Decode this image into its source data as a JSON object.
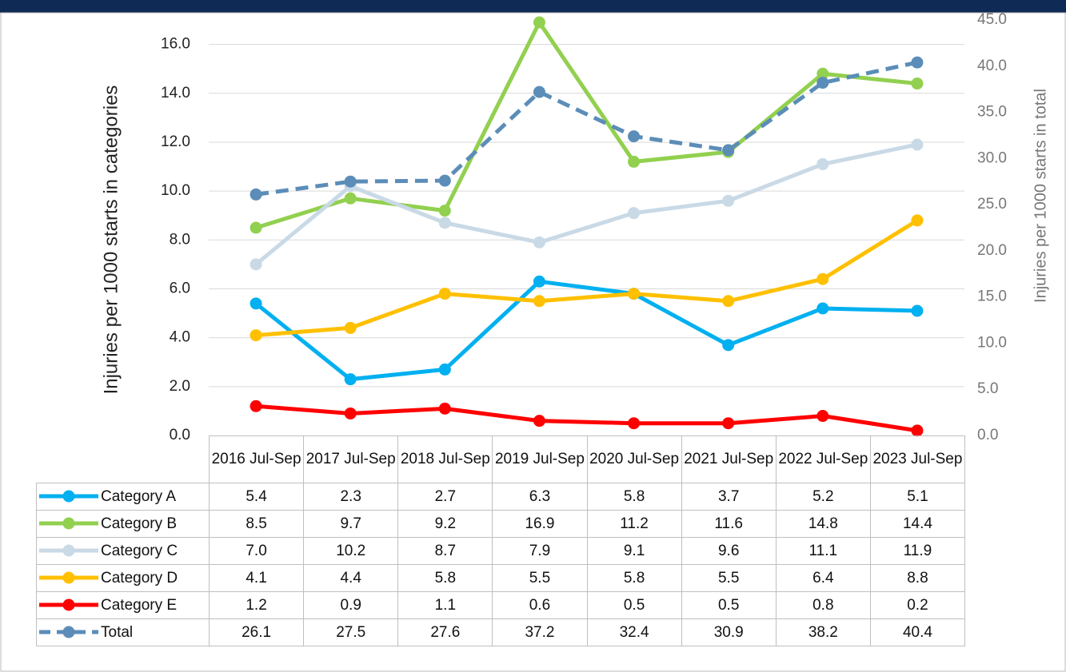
{
  "chart_data": {
    "type": "line",
    "y_label": "Injuries per 1000 starts in categories",
    "y2_label": "Injuries per 1000 starts in total",
    "categories": [
      "2016 Jul-Sep",
      "2017 Jul-Sep",
      "2018 Jul-Sep",
      "2019 Jul-Sep",
      "2020 Jul-Sep",
      "2021 Jul-Sep",
      "2022 Jul-Sep",
      "2023 Jul-Sep"
    ],
    "ylim": [
      0,
      17
    ],
    "yticks": [
      {
        "value": 0,
        "label": "0.0"
      },
      {
        "value": 2,
        "label": "2.0"
      },
      {
        "value": 4,
        "label": "4.0"
      },
      {
        "value": 6,
        "label": "6.0"
      },
      {
        "value": 8,
        "label": "8.0"
      },
      {
        "value": 10,
        "label": "10.0"
      },
      {
        "value": 12,
        "label": "12.0"
      },
      {
        "value": 14,
        "label": "14.0"
      },
      {
        "value": 16,
        "label": "16.0"
      }
    ],
    "y2lim": [
      0,
      45
    ],
    "y2ticks": [
      {
        "value": 0,
        "label": "0.0"
      },
      {
        "value": 5,
        "label": "5.0"
      },
      {
        "value": 10,
        "label": "10.0"
      },
      {
        "value": 15,
        "label": "15.0"
      },
      {
        "value": 20,
        "label": "20.0"
      },
      {
        "value": 25,
        "label": "25.0"
      },
      {
        "value": 30,
        "label": "30.0"
      },
      {
        "value": 35,
        "label": "35.0"
      },
      {
        "value": 40,
        "label": "40.0"
      },
      {
        "value": 45,
        "label": "45.0"
      }
    ],
    "grid": true,
    "series": [
      {
        "name": "Category A",
        "color": "#00b0f0",
        "values": [
          5.4,
          2.3,
          2.7,
          6.3,
          5.8,
          3.7,
          5.2,
          5.1
        ],
        "value_labels": [
          "5.4",
          "2.3",
          "2.7",
          "6.3",
          "5.8",
          "3.7",
          "5.2",
          "5.1"
        ]
      },
      {
        "name": "Category B",
        "color": "#92d050",
        "values": [
          8.5,
          9.7,
          9.2,
          16.9,
          11.2,
          11.6,
          14.8,
          14.4
        ],
        "value_labels": [
          "8.5",
          "9.7",
          "9.2",
          "16.9",
          "11.2",
          "11.6",
          "14.8",
          "14.4"
        ]
      },
      {
        "name": "Category C",
        "color": "#c9d9e6",
        "values": [
          7.0,
          10.2,
          8.7,
          7.9,
          9.1,
          9.6,
          11.1,
          11.9
        ],
        "value_labels": [
          "7.0",
          "10.2",
          "8.7",
          "7.9",
          "9.1",
          "9.6",
          "11.1",
          "11.9"
        ]
      },
      {
        "name": "Category D",
        "color": "#ffc000",
        "values": [
          4.1,
          4.4,
          5.8,
          5.5,
          5.8,
          5.5,
          6.4,
          8.8
        ],
        "value_labels": [
          "4.1",
          "4.4",
          "5.8",
          "5.5",
          "5.8",
          "5.5",
          "6.4",
          "8.8"
        ]
      },
      {
        "name": "Category E",
        "color": "#ff0000",
        "values": [
          1.2,
          0.9,
          1.1,
          0.6,
          0.5,
          0.5,
          0.8,
          0.2
        ],
        "value_labels": [
          "1.2",
          "0.9",
          "1.1",
          "0.6",
          "0.5",
          "0.5",
          "0.8",
          "0.2"
        ]
      },
      {
        "name": "Total",
        "color": "#5b8db8",
        "axis": "y2",
        "dashed": true,
        "values": [
          26.1,
          27.5,
          27.6,
          37.2,
          32.4,
          30.9,
          38.2,
          40.4
        ],
        "value_labels": [
          "26.1",
          "27.5",
          "27.6",
          "37.2",
          "32.4",
          "30.9",
          "38.2",
          "40.4"
        ]
      }
    ]
  }
}
